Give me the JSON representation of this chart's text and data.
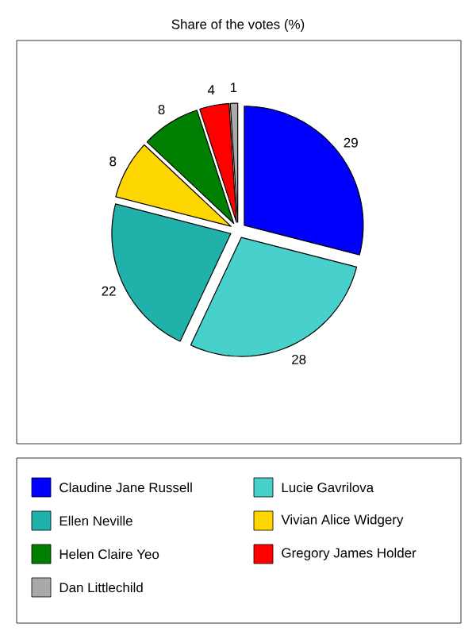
{
  "chart_data": {
    "type": "pie",
    "title": "Share of the votes (%)",
    "categories": [
      "Claudine Jane Russell",
      "Lucie Gavrilova",
      "Ellen Neville",
      "Vivian Alice Widgery",
      "Helen Claire Yeo",
      "Gregory James Holder",
      "Dan Littlechild"
    ],
    "values": [
      29,
      28,
      22,
      8,
      8,
      4,
      1
    ],
    "colors": [
      "#0000ff",
      "#48d1cc",
      "#20b2aa",
      "#ffd700",
      "#008000",
      "#ff0000",
      "#a9a9a9"
    ],
    "data_labels": true,
    "legend": "bottom"
  }
}
